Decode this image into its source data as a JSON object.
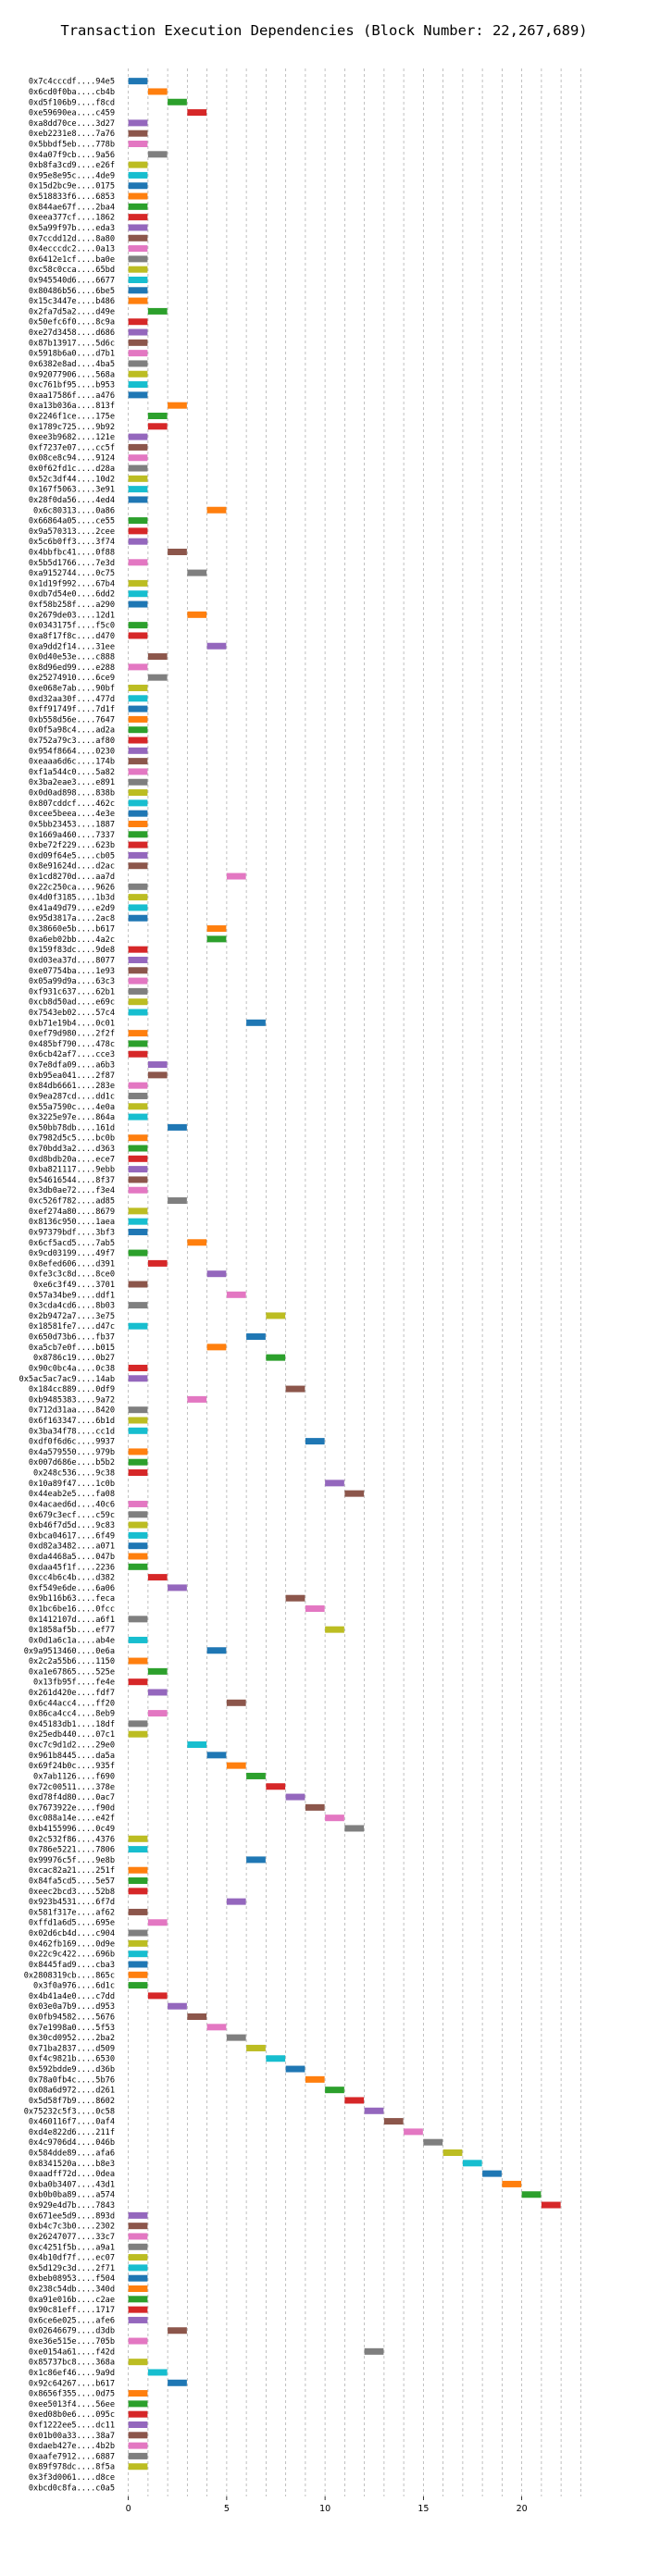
{
  "chart_data": {
    "type": "gantt",
    "title": "Transaction Execution Dependencies (Block Number: 22,267,689)",
    "xlabel": "",
    "ylabel": "",
    "xlim": [
      -0.5,
      23.5
    ],
    "xticks": [
      0,
      5,
      10,
      15,
      20
    ],
    "grid": "vertical dashed",
    "tx_labels": [
      "0x7c4cccdf....94e5",
      "0x6cd0f0ba....cb4b",
      "0xd5f106b9....f8cd",
      "0xe59690ea....c459",
      "0xa8dd70ce....3d27",
      "0xeb2231e8....7a76",
      "0x5bbdf5eb....778b",
      "0x4a07f9cb....9a56",
      "0xb8fa3cd9....e26f",
      "0x95e8e95c....4de9",
      "0x15d2bc9e....0175",
      "0x518833f6....6853",
      "0x844ae67f....2ba4",
      "0xeea377cf....1862",
      "0x5a99f97b....eda3",
      "0x7ccdd12d....8a80",
      "0x4ecccdc2....0a13",
      "0x6412e1cf....ba0e",
      "0xc58c0cca....65bd",
      "0x945540d6....6677",
      "0x80486b56....6be5",
      "0x15c3447e....b486",
      "0x2fa7d5a2....d49e",
      "0x50efc6f0....8c9a",
      "0xe27d3458....d686",
      "0x87b13917....5d6c",
      "0x5918b6a0....d7b1",
      "0x6382e8ad....4ba5",
      "0x92077906....568a",
      "0xc761bf95....b953",
      "0xaa17586f....a476",
      "0xa13b036a....813f",
      "0x2246f1ce....175e",
      "0x1789c725....9b92",
      "0xee3b9682....121e",
      "0xf7237e07....cc5f",
      "0x08ce8c94....9124",
      "0x0f62fd1c....d28a",
      "0x52c3df44....10d2",
      "0x167f5063....3e91",
      "0x28f0da56....4ed4",
      "0x6c80313....0a86",
      "0x66864a05....ce55",
      "0x9a570313....2cee",
      "0x5c6b0ff3....3f74",
      "0x4bbfbc41....0f88",
      "0x5b5d1766....7e3d",
      "0xa9152744....0c75",
      "0x1d19f992....67b4",
      "0xdb7d54e0....6dd2",
      "0xf58b258f....a290",
      "0x2679de03....12d1",
      "0x0343175f....f5c0",
      "0xa8f17f8c....d470",
      "0xa9dd2f14....31ee",
      "0x0d40e53e....c888",
      "0x8d96ed99....e288",
      "0x25274910....6ce9",
      "0xe068e7ab....90bf",
      "0xd32aa30f....477d",
      "0xff91749f....7d1f",
      "0xb558d56e....7647",
      "0x0f5a98c4....ad2a",
      "0x752a79c3....af80",
      "0x954f8664....0230",
      "0xeaaa6d6c....174b",
      "0xf1a544c0....5a82",
      "0x3ba2eae3....e891",
      "0x0d0ad898....838b",
      "0x807cddcf....462c",
      "0xcee5beea....4e3e",
      "0x5bb23453....1887",
      "0x1669a460....7337",
      "0xbe72f229....623b",
      "0xd09f64e5....cb05",
      "0x8e91624d....d2ac",
      "0x1cd8270d....aa7d",
      "0x22c250ca....9626",
      "0x4d0f3185....1b3d",
      "0x41a49d79....e2d9",
      "0x95d3817a....2ac8",
      "0x38660e5b....b617",
      "0xa6eb02bb....4a2c",
      "0x159f83dc....9de8",
      "0xd03ea37d....8077",
      "0xe07754ba....1e93",
      "0x05a99d9a....63c3",
      "0xf931c637....62b1",
      "0xcb8d50ad....e69c",
      "0x7543eb02....57c4",
      "0xb71e19b4....0c01",
      "0xef79d980....2f2f",
      "0x485bf790....478c",
      "0x6cb42af7....cce3",
      "0x7e8dfa09....a6b3",
      "0xb95ea041....2f87",
      "0x84db6661....283e",
      "0x9ea287cd....dd1c",
      "0x55a7590c....4e0a",
      "0x3225e97e....864a",
      "0x50bb78db....161d",
      "0x7982d5c5....bc0b",
      "0x70bdd3a2....d363",
      "0xd8bdb20a....ece7",
      "0xba821117....9ebb",
      "0x54616544....8f37",
      "0x3db0ae72....f3e4",
      "0xc526f782....ad85",
      "0xef274a80....8679",
      "0x8136c950....1aea",
      "0x97379bdf....3bf3",
      "0x6cf5acd5....7ab5",
      "0x9cd03199....49f7",
      "0x8efed606....d391",
      "0xfe3c3c8d....8ce0",
      "0xe6c3f49....3701",
      "0x57a34be9....ddf1",
      "0x3cda4cd6....8b03",
      "0x2b9472a7....3e75",
      "0x18581fe7....d47c",
      "0x650d73b6....fb37",
      "0xa5cb7e0f....b015",
      "0x8786c19....0b27",
      "0x90c0bc4a....0c38",
      "0x5ac5ac7ac9....14ab",
      "0x184cc889....0df9",
      "0xb9485383....9a72",
      "0x712d31aa....8420",
      "0x6f163347....6b1d",
      "0x3ba34f78....cc1d",
      "0xdf0f6d6c....9937",
      "0x4a579550....979b",
      "0x007d686e....b5b2",
      "0x248c536....9c38",
      "0x10a89f47....1c0b",
      "0x44eab2e5....fa08",
      "0x4acaed6d....40c6",
      "0x679c3ecf....c59c",
      "0xb46f7d5d....9c83",
      "0xbca04617....6f49",
      "0xd82a3482....a071",
      "0xda4468a5....047b",
      "0xdaa45f1f....2236",
      "0xcc4b6c4b....d382",
      "0xf549e6de....6a06",
      "0x9b116b63....feca",
      "0x1bc6be16....0fcc",
      "0x1412107d....a6f1",
      "0x1858af5b....ef77",
      "0x0d1a6c1a....ab4e",
      "0x9a9513460....0e6a",
      "0x2c2a55b6....1150",
      "0xa1e67865....525e",
      "0x13fb95f....fe4e",
      "0x261d420e....fdf7",
      "0x6c44acc4....ff20",
      "0x86ca4cc4....8eb9",
      "0x45183db1....18df",
      "0x25edb440....07c1",
      "0xc7c9d1d2....29e0",
      "0x961b8445....da5a",
      "0x69f24b0c....935f",
      "0x7ab1126....f690",
      "0x72c00511....378e",
      "0xd78f4d80....0ac7",
      "0x7673922e....f90d",
      "0xc088a14e....e42f",
      "0xb4155996....0c49",
      "0x2c532f86....4376",
      "0x786e5221....7806",
      "0x99976c5f....9e8b",
      "0xcac82a21....251f",
      "0x84fa5cd5....5e57",
      "0xeec2bcd3....52b8",
      "0x923b4531....6f7d",
      "0x581f317e....af62",
      "0xffd1a6d5....695e",
      "0x02d6cb4d....c904",
      "0x462fb169....0d9e",
      "0x22c9c422....696b",
      "0x8445fad9....cba3",
      "0x2808319cb....865c",
      "0x3f0a976....6d1c",
      "0x4b41a4e0....c7dd",
      "0x03e0a7b9....d953",
      "0x0fb94582....5676",
      "0x7e1998a0....5f53",
      "0x30cd0952....2ba2",
      "0x71ba2837....d509",
      "0xf4c9821b....6530",
      "0x592bdde9....d36b",
      "0x78a0fb4c....5b76",
      "0x08a6d972....d261",
      "0x5d58f7b9....8602",
      "0x75232c5f3....0c58",
      "0x460116f7....0af4",
      "0xd4e822d6....211f",
      "0x4c9706d4....046b",
      "0x584dde89....afa6",
      "0x8341520a....b8e3",
      "0xaadff72d....0dea",
      "0xba0b3407....43d1",
      "0xb0b0ba89....a574",
      "0x929e4d7b....7843",
      "0x671ee5d9....893d",
      "0xb4c7c3b0....2302",
      "0x26247077....33c7",
      "0xc4251f5b....a9a1",
      "0x4b10df7f....ec07",
      "0x5d129c3d....2f71",
      "0xbeb08953....f504",
      "0x238c54db....340d",
      "0xa91e016b....c2ae",
      "0x90c81eff....1717",
      "0x6ce6e025....afe6",
      "0x02646679....d3db",
      "0xe36e515e....705b",
      "0xe0154a61....f42d",
      "0x85737bc8....368a",
      "0x1c86ef46....9a9d",
      "0x92c64267....b617",
      "0x8656f355....0d75",
      "0xee5013f4....56ee",
      "0xed08b0e6....095c",
      "0xf1222ee5....dc11",
      "0x01b00a33....38a7",
      "0xdaeb427e....4b2b",
      "0xaafe7912....6887",
      "0x89f978dc....8f5a",
      "0x3f3d0061....d8ce",
      "0xbcd0c8fa....c0a5"
    ],
    "starts": [
      0,
      1,
      2,
      3,
      0,
      0,
      0,
      1,
      0,
      0,
      0,
      0,
      0,
      0,
      0,
      0,
      0,
      0,
      0,
      0,
      0,
      0,
      1,
      0,
      0,
      0,
      0,
      0,
      0,
      0,
      0,
      2,
      1,
      1,
      0,
      0,
      0,
      0,
      0,
      0,
      0,
      4,
      0,
      0,
      0,
      2,
      0,
      3,
      0,
      0,
      0,
      3,
      0,
      0,
      4,
      1,
      0,
      1,
      0,
      0,
      0,
      0,
      0,
      0,
      0,
      0,
      0,
      0,
      0,
      0,
      0,
      0,
      0,
      0,
      0,
      0,
      5,
      0,
      0,
      0,
      0,
      4,
      4,
      0,
      0,
      0,
      0,
      0,
      0,
      0,
      6,
      0,
      0,
      0,
      1,
      1,
      0,
      0,
      0,
      0,
      2,
      0,
      0,
      0,
      0,
      0,
      0,
      2,
      0,
      0,
      0,
      3,
      0,
      1,
      4,
      0,
      5,
      0,
      7,
      0,
      6,
      4,
      7,
      0,
      0,
      8,
      3,
      0,
      0,
      0,
      9,
      0,
      0,
      0,
      10,
      11,
      0,
      0,
      0,
      0,
      0,
      0,
      0,
      1,
      2,
      8,
      9,
      0,
      10,
      0,
      4,
      0,
      1,
      0,
      1,
      5,
      1,
      0,
      0,
      3,
      4,
      5,
      6,
      7,
      8,
      9,
      10,
      11,
      0,
      0,
      6,
      0,
      0,
      0,
      5,
      0,
      1,
      0,
      0,
      0,
      0,
      0,
      0,
      1,
      2,
      3,
      4,
      5,
      6,
      7,
      8,
      9,
      10,
      11,
      12,
      13,
      14,
      15,
      16,
      17,
      18,
      19,
      20,
      21,
      0,
      0,
      0,
      0,
      0,
      0,
      0,
      0,
      0,
      0,
      0,
      2,
      0,
      12,
      0,
      1,
      2,
      0,
      0,
      0,
      0,
      0,
      0,
      0,
      0
    ],
    "colors": [
      "#1f77b4",
      "#ff7f0e",
      "#2ca02c",
      "#d62728",
      "#9467bd",
      "#8c564b",
      "#e377c2",
      "#7f7f7f",
      "#bcbd22",
      "#17becf"
    ]
  }
}
